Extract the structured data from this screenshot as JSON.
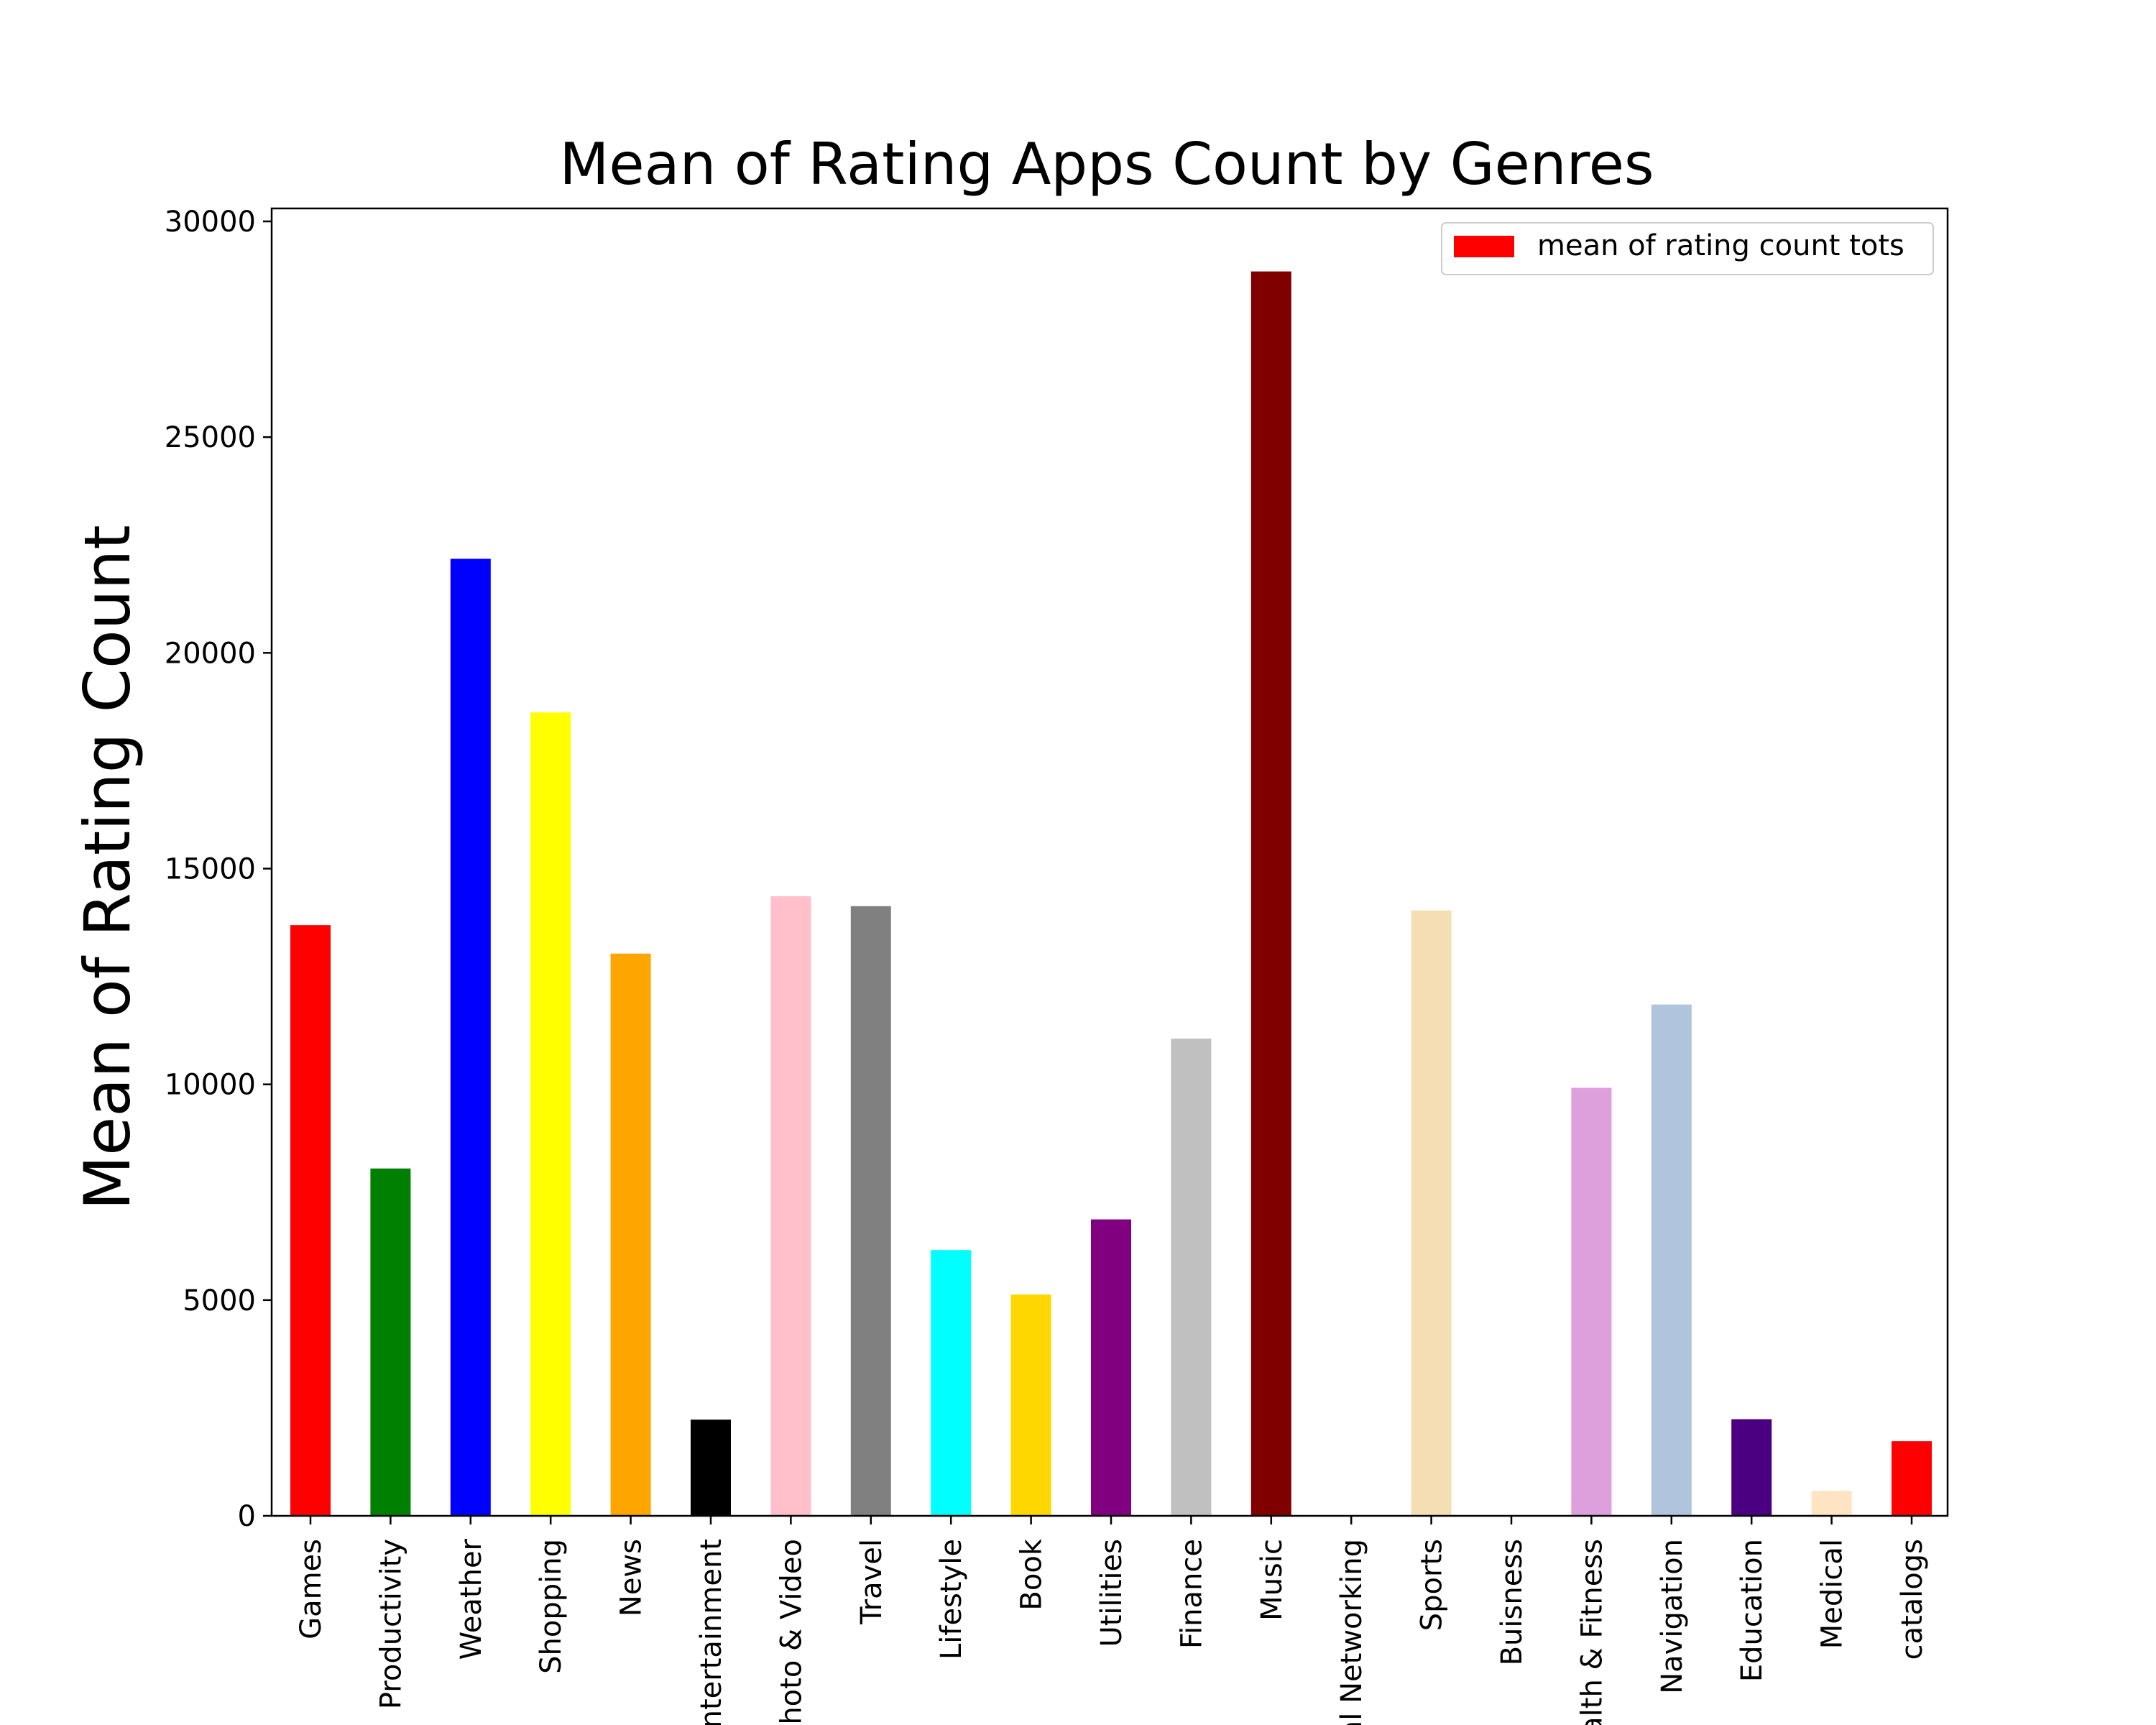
{
  "chart_data": {
    "type": "bar",
    "title": "Mean of Rating Apps Count by Genres",
    "xlabel": "",
    "ylabel": "Mean of Rating Count",
    "ylim": [
      0,
      30300
    ],
    "yticks": [
      0,
      5000,
      10000,
      15000,
      20000,
      25000,
      30000
    ],
    "grid": false,
    "legend": {
      "placement": "top-right",
      "entries": [
        "mean of rating count tots"
      ],
      "color": "#ff0000"
    },
    "categories": [
      "Games",
      "Productivity",
      "Weather",
      "Shopping",
      "News",
      "Entertainment",
      "Photo & Video",
      "Travel",
      "Lifestyle",
      "Book",
      "Utilities",
      "Finance",
      "Music",
      "Social Networking",
      "Sports",
      "Buisness",
      "Health & Fitness",
      "Navigation",
      "Education",
      "Medical",
      "catalogs"
    ],
    "values": [
      13690,
      8050,
      22180,
      18620,
      13030,
      2230,
      14360,
      14130,
      6160,
      5130,
      6870,
      11060,
      28840,
      0,
      14030,
      0,
      9920,
      11850,
      2240,
      580,
      1730
    ],
    "colors": [
      "#ff0000",
      "#008000",
      "#0000ff",
      "#ffff00",
      "#ffa500",
      "#000000",
      "#ffc0cb",
      "#808080",
      "#00ffff",
      "#ffd700",
      "#800080",
      "#c0c0c0",
      "#800000",
      "#ffffff",
      "#f5deb3",
      "#ffffff",
      "#dda0dd",
      "#b0c4de",
      "#4b0082",
      "#ffe4c4",
      "#ff0000"
    ]
  }
}
